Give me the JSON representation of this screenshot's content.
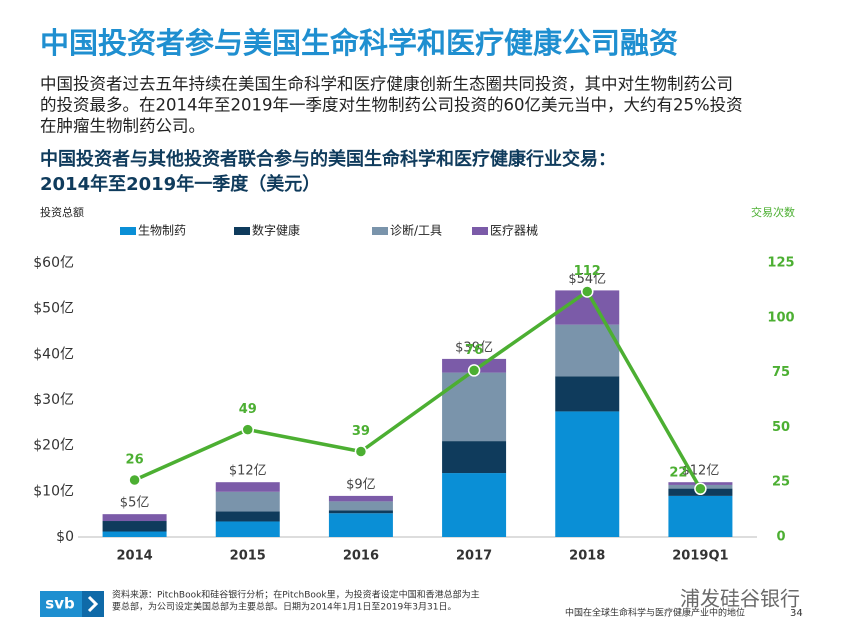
{
  "title": "中国投资者参与美国生命科学和医疗健康公司融资",
  "body": [
    "中国投资者过去五年持续在美国生命科学和医疗健康创新生态圈共同投资，其中对生物制药公司",
    "的投资最多。在2014年至2019年一季度对生物制药公司投资的60亿美元当中，大约有25%投资",
    "在肿瘤生物制药公司。"
  ],
  "chart_data": {
    "type": "bar",
    "title": [
      "中国投资者与其他投资者联合参与的美国生命科学和医疗健康行业交易：",
      "2014年至2019年一季度（美元）"
    ],
    "ylabel": "投资总额",
    "y2label": "交易次数",
    "categories": [
      "2014",
      "2015",
      "2016",
      "2017",
      "2018",
      "2019Q1"
    ],
    "series": [
      {
        "name": "生物制药",
        "color": "#0a8fd6",
        "values": [
          1.2,
          3.4,
          5.2,
          14,
          27.5,
          9
        ]
      },
      {
        "name": "数字健康",
        "color": "#0f3b5c",
        "values": [
          2.3,
          2.2,
          0.6,
          7,
          7.7,
          1.6
        ]
      },
      {
        "name": "诊断/工具",
        "color": "#7a94ab",
        "values": [
          0,
          4.3,
          2,
          15,
          11.3,
          0.8
        ]
      },
      {
        "name": "医疗器械",
        "color": "#7b5ba8",
        "values": [
          1.5,
          2.1,
          1.2,
          3,
          7.5,
          0.6
        ]
      },
      {
        "name": "交易次数",
        "type": "line",
        "axis": "y2",
        "color": "#4caf32",
        "values": [
          26,
          49,
          39,
          76,
          112,
          22
        ]
      }
    ],
    "total_labels": [
      "$5亿",
      "$12亿",
      "$9亿",
      "$39亿",
      "$54亿",
      "$12亿"
    ],
    "ylim": [
      0,
      60
    ],
    "yticks": [
      {
        "value": 0,
        "label": "$0"
      },
      {
        "value": 10,
        "label": "$10亿"
      },
      {
        "value": 20,
        "label": "$20亿"
      },
      {
        "value": 30,
        "label": "$30亿"
      },
      {
        "value": 40,
        "label": "$40亿"
      },
      {
        "value": 50,
        "label": "$50亿"
      },
      {
        "value": 60,
        "label": "$60亿"
      }
    ],
    "y2lim": [
      0,
      125
    ],
    "y2ticks": [
      0,
      25,
      50,
      75,
      100,
      125
    ]
  },
  "footnote": [
    "资料来源：PitchBook和硅谷银行分析；在PitchBook里，为投资者设定中国和香港总部为主",
    "要总部，为公司设定美国总部为主要总部。日期为2014年1月1日至2019年3月31日。"
  ],
  "logo": "svb",
  "footer": "中国在全球生命科学与医疗健康产业中的地位",
  "page_number": "34",
  "watermark": "浦发硅谷银行"
}
